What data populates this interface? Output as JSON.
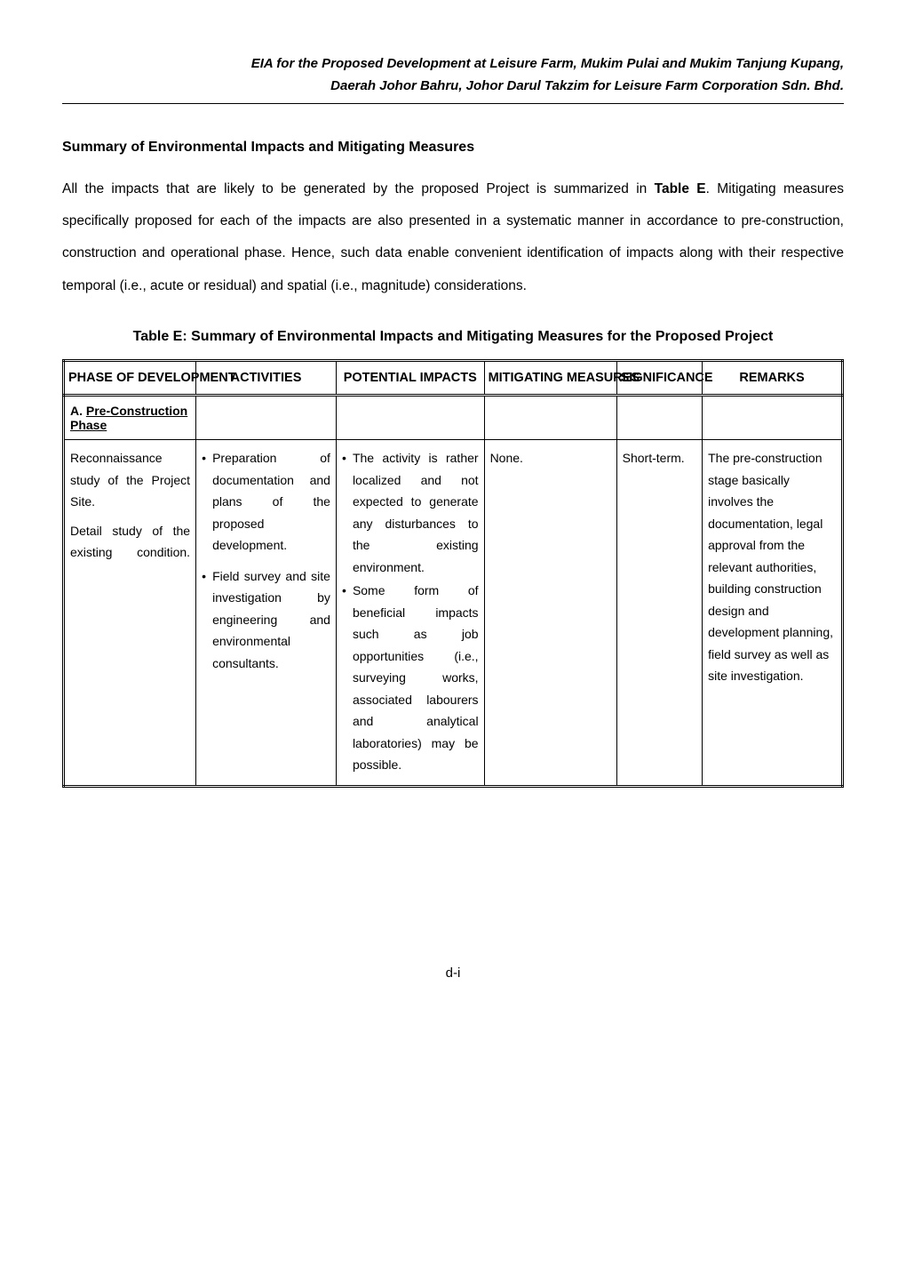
{
  "header": {
    "line1": "EIA for the Proposed Development at Leisure Farm, Mukim Pulai and Mukim Tanjung Kupang,",
    "line2": "Daerah Johor Bahru, Johor Darul Takzim for Leisure Farm Corporation Sdn. Bhd."
  },
  "section_heading": "Summary of Environmental Impacts and Mitigating Measures",
  "paragraph1": "All the impacts that are likely to be generated by the proposed Project is summarized in ",
  "paragraph1_bold": "Table E",
  "paragraph1_rest": ". Mitigating measures specifically proposed for each of the impacts are also presented in a systematic manner in accordance to pre-construction, construction and operational phase. Hence, such data enable convenient identification of impacts along with their respective temporal (i.e., acute or residual) and spatial (i.e., magnitude) considerations.",
  "table_caption": "Table E: Summary of Environmental Impacts and Mitigating Measures for the Proposed Project",
  "columns": {
    "c1": "PHASE OF DEVELOPMENT",
    "c2": "ACTIVITIES",
    "c3": "POTENTIAL IMPACTS",
    "c4": "MITIGATING MEASURES",
    "c5": "SIGNIFICANCE",
    "c6": "REMARKS"
  },
  "col_widths": {
    "c1": "17%",
    "c2": "18%",
    "c3": "19%",
    "c4": "17%",
    "c5": "11%",
    "c6": "18%"
  },
  "phase_row": {
    "prefix": "A.  ",
    "label": "Pre-Construction Phase"
  },
  "row1": {
    "phase_a": "Reconnaissance study of the Project Site.",
    "phase_b": "Detail study of the existing condition.",
    "activities_a1": "Preparation of documentation and plans of the proposed development.",
    "activities_b1": "Field survey and site investigation by engineering and environmental consultants.",
    "impacts_a1": "The activity is rather localized and not expected to generate any disturbances to the existing environment.",
    "impacts_b1": "Some form of beneficial impacts such as job opportunities (i.e., surveying works, associated labourers and analytical laboratories) may be possible.",
    "mitigating": "None.",
    "significance": "Short-term.",
    "remarks": "The pre-construction stage basically involves the documentation, legal approval from the relevant authorities, building construction design and development planning, field survey as well as site investigation."
  },
  "footer": "d-i",
  "style": {
    "page_bg": "#ffffff",
    "text_color": "#000000",
    "rule_color": "#000000",
    "font_family": "Arial Narrow, Arial, sans-serif",
    "body_fontsize_pt": 11.5,
    "heading_fontsize_pt": 12,
    "line_height_body": 2.35,
    "table_border_style": "double-outer-single-inner"
  }
}
